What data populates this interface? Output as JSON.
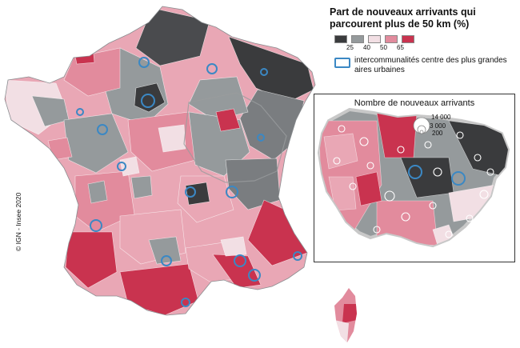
{
  "legend": {
    "title": "Part de nouveaux arrivants qui parcourent plus de 50 km (%)",
    "classes": [
      {
        "color": "#3a3b3d",
        "label": ""
      },
      {
        "color": "#959a9c",
        "label": "25"
      },
      {
        "color": "#f2dfe4",
        "label": "40"
      },
      {
        "color": "#e28b9d",
        "label": "50"
      },
      {
        "color": "#c9334f",
        "label": "65"
      }
    ],
    "epci_label": "intercommunalités centre des plus grandes aires urbaines",
    "epci_color": "#3b88c4"
  },
  "inset": {
    "title": "Nombre de nouveaux arrivants",
    "size_legend": [
      "14 000",
      "3 000",
      "200"
    ]
  },
  "credit": "© IGN - Insee 2020"
}
